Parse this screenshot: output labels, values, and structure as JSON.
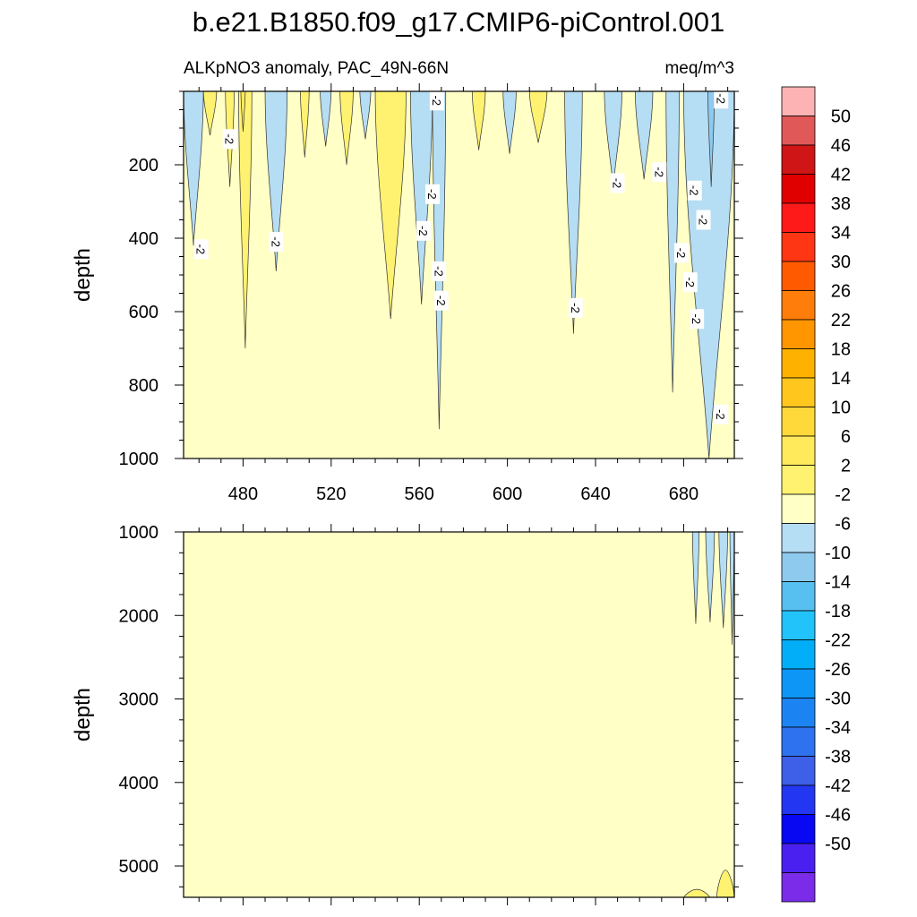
{
  "chart_data": {
    "type": "contour",
    "title": "b.e21.B1850.f09_g17.CMIP6-piControl.001",
    "subtitle_left": "ALKpNO3 anomaly, PAC_49N-66N",
    "subtitle_right": "meq/m^3",
    "x_range": [
      453,
      703
    ],
    "x_ticks": [
      480,
      520,
      560,
      600,
      640,
      680
    ],
    "x_tick_labels": [
      "480",
      "520",
      "560",
      "600",
      "640",
      "680"
    ],
    "panels": [
      {
        "name": "upper",
        "ylabel": "depth",
        "ylim": [
          0,
          1000
        ],
        "y_inverted": true,
        "y_ticks": [
          200,
          400,
          600,
          800,
          1000
        ],
        "y_tick_labels": [
          "200",
          "400",
          "600",
          "800",
          "1000"
        ],
        "background_level": "-2 to 2",
        "contour_labels": [
          "-2",
          "-2",
          "-2",
          "-2",
          "-2",
          "-2",
          "-2",
          "-2",
          "-2",
          "-2",
          "-2",
          "-2",
          "-2",
          "-2",
          "-2",
          "-2",
          "-2",
          "-2"
        ],
        "regions": [
          {
            "level": "-6 to -2",
            "x0": 453,
            "x1": 462,
            "bottom": 420
          },
          {
            "level": "2 to 6",
            "x0": 462,
            "x1": 468,
            "bottom": 120
          },
          {
            "level": "2 to 6",
            "x0": 472,
            "x1": 476,
            "bottom": 260
          },
          {
            "level": "2 to 6",
            "x0": 478,
            "x1": 484,
            "bottom": 700
          },
          {
            "level": "6 to 10",
            "x0": 479,
            "x1": 481,
            "bottom": 110
          },
          {
            "level": "-6 to -2",
            "x0": 490,
            "x1": 500,
            "bottom": 490
          },
          {
            "level": "2 to 6",
            "x0": 506,
            "x1": 510,
            "bottom": 180
          },
          {
            "level": "-6 to -2",
            "x0": 515,
            "x1": 520,
            "bottom": 150
          },
          {
            "level": "2 to 6",
            "x0": 524,
            "x1": 530,
            "bottom": 200
          },
          {
            "level": "-6 to -2",
            "x0": 533,
            "x1": 538,
            "bottom": 130
          },
          {
            "level": "2 to 6",
            "x0": 540,
            "x1": 554,
            "bottom": 620
          },
          {
            "level": "-6 to -2",
            "x0": 556,
            "x1": 566,
            "bottom": 580
          },
          {
            "level": "-6 to -2",
            "x0": 566,
            "x1": 572,
            "bottom": 920
          },
          {
            "level": "2 to 6",
            "x0": 584,
            "x1": 590,
            "bottom": 160
          },
          {
            "level": "-6 to -2",
            "x0": 598,
            "x1": 604,
            "bottom": 170
          },
          {
            "level": "2 to 6",
            "x0": 610,
            "x1": 618,
            "bottom": 140
          },
          {
            "level": "-6 to -2",
            "x0": 626,
            "x1": 634,
            "bottom": 660
          },
          {
            "level": "-6 to -2",
            "x0": 644,
            "x1": 652,
            "bottom": 260
          },
          {
            "level": "-6 to -2",
            "x0": 658,
            "x1": 666,
            "bottom": 240
          },
          {
            "level": "-6 to -2",
            "x0": 672,
            "x1": 678,
            "bottom": 820
          },
          {
            "level": "-6 to -2",
            "x0": 680,
            "x1": 703,
            "bottom": 1000
          },
          {
            "level": "-10 to -6",
            "x0": 691,
            "x1": 694,
            "bottom": 260
          }
        ]
      },
      {
        "name": "lower",
        "ylabel": "depth",
        "ylim": [
          1000,
          5375
        ],
        "y_inverted": true,
        "y_ticks": [
          1000,
          2000,
          3000,
          4000,
          5000
        ],
        "y_tick_labels": [
          "1000",
          "2000",
          "3000",
          "4000",
          "5000"
        ],
        "background_level": "-2 to 2",
        "regions": [
          {
            "level": "-6 to -2",
            "x0": 684,
            "x1": 687,
            "bottom": 2100
          },
          {
            "level": "-6 to -2",
            "x0": 690,
            "x1": 694,
            "bottom": 2080
          },
          {
            "level": "-6 to -2",
            "x0": 696,
            "x1": 700,
            "bottom": 2150
          },
          {
            "level": "-6 to -2",
            "x0": 701,
            "x1": 703,
            "bottom": 2350
          },
          {
            "level": "2 to 6",
            "x0": 695,
            "x1": 703,
            "top": 5050
          },
          {
            "level": "2 to 6",
            "x0": 680,
            "x1": 692,
            "top": 5280
          }
        ]
      }
    ],
    "colorbar": {
      "labels": [
        "50",
        "46",
        "42",
        "38",
        "34",
        "30",
        "26",
        "22",
        "18",
        "14",
        "10",
        "6",
        "2",
        "-2",
        "-6",
        "-10",
        "-14",
        "-18",
        "-22",
        "-26",
        "-30",
        "-34",
        "-38",
        "-42",
        "-46",
        "-50"
      ],
      "colors": [
        "#fdb3b3",
        "#e05858",
        "#cf1515",
        "#e00000",
        "#ff1a1a",
        "#ff3614",
        "#ff5a00",
        "#ff7d0a",
        "#ff9600",
        "#ffb100",
        "#ffc61d",
        "#ffd83a",
        "#ffea5c",
        "#fff270",
        "#ffffc6",
        "#b5ddf3",
        "#8ec9ee",
        "#58c0f0",
        "#22c2fb",
        "#02aef8",
        "#0d96f5",
        "#1c84f2",
        "#2f72f0",
        "#3e5fe8",
        "#2336f2",
        "#0808f2",
        "#4a20f0",
        "#7a2ce8"
      ]
    }
  }
}
